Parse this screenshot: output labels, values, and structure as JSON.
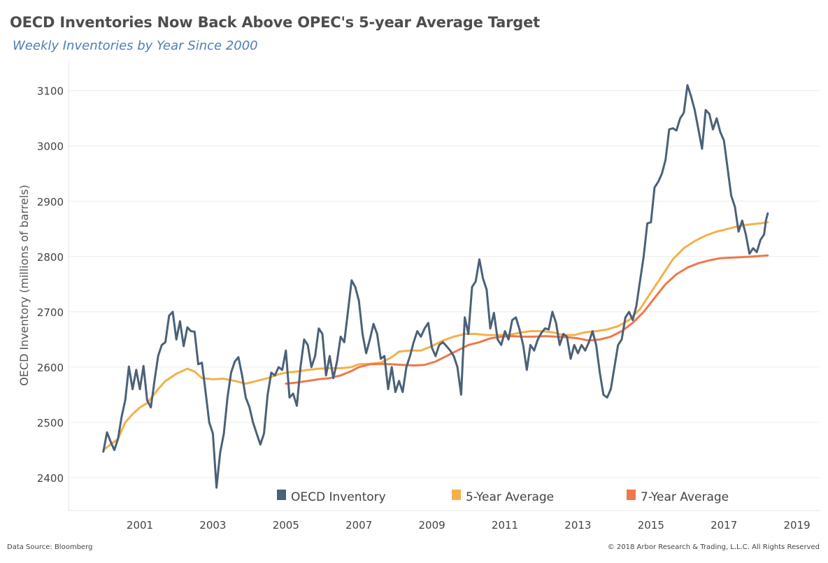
{
  "title": "OECD Inventories Now Back Above OPEC's 5-year Average Target",
  "subtitle": "Weekly Inventories by Year Since 2000",
  "footer": {
    "source": "Data Source: Bloomberg",
    "copyright": "© 2018 Arbor Research & Trading, L.L.C. All Rights Reserved"
  },
  "chart_data": {
    "type": "line",
    "title": "OECD Inventories Now Back Above OPEC's 5-year Average Target",
    "subtitle": "Weekly Inventories by Year Since 2000",
    "xlabel": "",
    "ylabel": "OECD Inventory (millions of barrels)",
    "xlim": [
      2000.0,
      2019.4
    ],
    "ylim": [
      2370,
      3115
    ],
    "x_ticks": [
      "2001",
      "2003",
      "2005",
      "2007",
      "2009",
      "2011",
      "2013",
      "2015",
      "2017",
      "2019"
    ],
    "y_ticks": [
      "2400",
      "2500",
      "2600",
      "2700",
      "2800",
      "2900",
      "3000",
      "3100"
    ],
    "grid": "horizontal",
    "legend": "bottom",
    "series": [
      {
        "name": "OECD Inventory",
        "color": "#4a6178",
        "points": [
          [
            2000.0,
            2447
          ],
          [
            2000.1,
            2482
          ],
          [
            2000.2,
            2465
          ],
          [
            2000.3,
            2450
          ],
          [
            2000.4,
            2470
          ],
          [
            2000.5,
            2510
          ],
          [
            2000.6,
            2540
          ],
          [
            2000.7,
            2601
          ],
          [
            2000.8,
            2560
          ],
          [
            2000.9,
            2595
          ],
          [
            2001.0,
            2560
          ],
          [
            2001.1,
            2602
          ],
          [
            2001.2,
            2540
          ],
          [
            2001.3,
            2527
          ],
          [
            2001.4,
            2575
          ],
          [
            2001.5,
            2620
          ],
          [
            2001.6,
            2640
          ],
          [
            2001.7,
            2645
          ],
          [
            2001.8,
            2693
          ],
          [
            2001.9,
            2700
          ],
          [
            2002.0,
            2650
          ],
          [
            2002.1,
            2683
          ],
          [
            2002.2,
            2638
          ],
          [
            2002.3,
            2672
          ],
          [
            2002.4,
            2665
          ],
          [
            2002.5,
            2664
          ],
          [
            2002.6,
            2605
          ],
          [
            2002.7,
            2608
          ],
          [
            2002.8,
            2555
          ],
          [
            2002.9,
            2500
          ],
          [
            2003.0,
            2480
          ],
          [
            2003.1,
            2382
          ],
          [
            2003.2,
            2445
          ],
          [
            2003.3,
            2480
          ],
          [
            2003.4,
            2545
          ],
          [
            2003.5,
            2590
          ],
          [
            2003.6,
            2610
          ],
          [
            2003.7,
            2618
          ],
          [
            2003.8,
            2585
          ],
          [
            2003.9,
            2545
          ],
          [
            2004.0,
            2528
          ],
          [
            2004.1,
            2500
          ],
          [
            2004.2,
            2480
          ],
          [
            2004.3,
            2460
          ],
          [
            2004.4,
            2480
          ],
          [
            2004.5,
            2550
          ],
          [
            2004.6,
            2590
          ],
          [
            2004.7,
            2585
          ],
          [
            2004.8,
            2600
          ],
          [
            2004.9,
            2595
          ],
          [
            2005.0,
            2630
          ],
          [
            2005.1,
            2545
          ],
          [
            2005.2,
            2552
          ],
          [
            2005.3,
            2530
          ],
          [
            2005.4,
            2600
          ],
          [
            2005.5,
            2650
          ],
          [
            2005.6,
            2640
          ],
          [
            2005.7,
            2600
          ],
          [
            2005.8,
            2620
          ],
          [
            2005.9,
            2670
          ],
          [
            2006.0,
            2660
          ],
          [
            2006.1,
            2585
          ],
          [
            2006.2,
            2620
          ],
          [
            2006.3,
            2580
          ],
          [
            2006.4,
            2610
          ],
          [
            2006.5,
            2655
          ],
          [
            2006.6,
            2645
          ],
          [
            2006.7,
            2700
          ],
          [
            2006.8,
            2757
          ],
          [
            2006.9,
            2745
          ],
          [
            2007.0,
            2720
          ],
          [
            2007.1,
            2660
          ],
          [
            2007.2,
            2625
          ],
          [
            2007.3,
            2650
          ],
          [
            2007.4,
            2678
          ],
          [
            2007.5,
            2660
          ],
          [
            2007.6,
            2615
          ],
          [
            2007.7,
            2620
          ],
          [
            2007.8,
            2560
          ],
          [
            2007.9,
            2600
          ],
          [
            2008.0,
            2555
          ],
          [
            2008.1,
            2575
          ],
          [
            2008.2,
            2555
          ],
          [
            2008.3,
            2600
          ],
          [
            2008.4,
            2620
          ],
          [
            2008.5,
            2645
          ],
          [
            2008.6,
            2665
          ],
          [
            2008.7,
            2655
          ],
          [
            2008.8,
            2670
          ],
          [
            2008.9,
            2680
          ],
          [
            2009.0,
            2635
          ],
          [
            2009.1,
            2620
          ],
          [
            2009.2,
            2640
          ],
          [
            2009.3,
            2645
          ],
          [
            2009.4,
            2638
          ],
          [
            2009.5,
            2630
          ],
          [
            2009.6,
            2620
          ],
          [
            2009.7,
            2600
          ],
          [
            2009.8,
            2550
          ],
          [
            2009.9,
            2690
          ],
          [
            2010.0,
            2660
          ],
          [
            2010.1,
            2745
          ],
          [
            2010.2,
            2755
          ],
          [
            2010.3,
            2795
          ],
          [
            2010.4,
            2760
          ],
          [
            2010.5,
            2740
          ],
          [
            2010.6,
            2670
          ],
          [
            2010.7,
            2698
          ],
          [
            2010.8,
            2650
          ],
          [
            2010.9,
            2640
          ],
          [
            2011.0,
            2665
          ],
          [
            2011.1,
            2650
          ],
          [
            2011.2,
            2685
          ],
          [
            2011.3,
            2690
          ],
          [
            2011.4,
            2668
          ],
          [
            2011.5,
            2640
          ],
          [
            2011.6,
            2595
          ],
          [
            2011.7,
            2640
          ],
          [
            2011.8,
            2630
          ],
          [
            2011.9,
            2650
          ],
          [
            2012.0,
            2662
          ],
          [
            2012.1,
            2670
          ],
          [
            2012.2,
            2668
          ],
          [
            2012.3,
            2700
          ],
          [
            2012.4,
            2680
          ],
          [
            2012.5,
            2640
          ],
          [
            2012.6,
            2660
          ],
          [
            2012.7,
            2655
          ],
          [
            2012.8,
            2615
          ],
          [
            2012.9,
            2640
          ],
          [
            2013.0,
            2625
          ],
          [
            2013.1,
            2640
          ],
          [
            2013.2,
            2630
          ],
          [
            2013.3,
            2645
          ],
          [
            2013.4,
            2665
          ],
          [
            2013.5,
            2640
          ],
          [
            2013.6,
            2590
          ],
          [
            2013.7,
            2550
          ],
          [
            2013.8,
            2545
          ],
          [
            2013.9,
            2560
          ],
          [
            2014.0,
            2600
          ],
          [
            2014.1,
            2640
          ],
          [
            2014.2,
            2650
          ],
          [
            2014.3,
            2690
          ],
          [
            2014.4,
            2700
          ],
          [
            2014.5,
            2685
          ],
          [
            2014.6,
            2710
          ],
          [
            2014.7,
            2755
          ],
          [
            2014.8,
            2800
          ],
          [
            2014.9,
            2860
          ],
          [
            2015.0,
            2862
          ],
          [
            2015.1,
            2925
          ],
          [
            2015.2,
            2935
          ],
          [
            2015.3,
            2950
          ],
          [
            2015.4,
            2975
          ],
          [
            2015.5,
            3030
          ],
          [
            2015.6,
            3032
          ],
          [
            2015.7,
            3028
          ],
          [
            2015.8,
            3050
          ],
          [
            2015.9,
            3060
          ],
          [
            2016.0,
            3110
          ],
          [
            2016.1,
            3090
          ],
          [
            2016.2,
            3065
          ],
          [
            2016.3,
            3030
          ],
          [
            2016.4,
            2995
          ],
          [
            2016.5,
            3065
          ],
          [
            2016.6,
            3058
          ],
          [
            2016.7,
            3030
          ],
          [
            2016.8,
            3050
          ],
          [
            2016.9,
            3025
          ],
          [
            2017.0,
            3010
          ],
          [
            2017.1,
            2960
          ],
          [
            2017.2,
            2910
          ],
          [
            2017.3,
            2890
          ],
          [
            2017.4,
            2845
          ],
          [
            2017.5,
            2865
          ],
          [
            2017.6,
            2840
          ],
          [
            2017.7,
            2805
          ],
          [
            2017.8,
            2815
          ],
          [
            2017.9,
            2808
          ],
          [
            2018.0,
            2830
          ],
          [
            2018.1,
            2840
          ],
          [
            2018.15,
            2865
          ],
          [
            2018.2,
            2878
          ]
        ]
      },
      {
        "name": "5-Year Average",
        "color": "#f5b04a",
        "points": [
          [
            2000.0,
            2450
          ],
          [
            2000.2,
            2460
          ],
          [
            2000.4,
            2470
          ],
          [
            2000.6,
            2500
          ],
          [
            2000.8,
            2515
          ],
          [
            2001.0,
            2527
          ],
          [
            2001.2,
            2535
          ],
          [
            2001.5,
            2560
          ],
          [
            2001.7,
            2575
          ],
          [
            2002.0,
            2588
          ],
          [
            2002.3,
            2597
          ],
          [
            2002.5,
            2592
          ],
          [
            2002.7,
            2580
          ],
          [
            2003.0,
            2578
          ],
          [
            2003.3,
            2579
          ],
          [
            2003.6,
            2575
          ],
          [
            2003.9,
            2570
          ],
          [
            2004.2,
            2575
          ],
          [
            2004.5,
            2580
          ],
          [
            2004.8,
            2587
          ],
          [
            2005.0,
            2590
          ],
          [
            2005.3,
            2592
          ],
          [
            2005.6,
            2595
          ],
          [
            2005.9,
            2597
          ],
          [
            2006.2,
            2598
          ],
          [
            2006.5,
            2598
          ],
          [
            2006.8,
            2600
          ],
          [
            2007.0,
            2605
          ],
          [
            2007.3,
            2606
          ],
          [
            2007.6,
            2608
          ],
          [
            2007.9,
            2618
          ],
          [
            2008.1,
            2628
          ],
          [
            2008.4,
            2630
          ],
          [
            2008.7,
            2630
          ],
          [
            2009.0,
            2638
          ],
          [
            2009.3,
            2648
          ],
          [
            2009.6,
            2655
          ],
          [
            2009.9,
            2660
          ],
          [
            2010.2,
            2660
          ],
          [
            2010.5,
            2658
          ],
          [
            2010.8,
            2658
          ],
          [
            2011.1,
            2658
          ],
          [
            2011.4,
            2662
          ],
          [
            2011.7,
            2665
          ],
          [
            2012.0,
            2665
          ],
          [
            2012.3,
            2663
          ],
          [
            2012.6,
            2658
          ],
          [
            2012.9,
            2658
          ],
          [
            2013.2,
            2663
          ],
          [
            2013.5,
            2665
          ],
          [
            2013.8,
            2668
          ],
          [
            2014.1,
            2674
          ],
          [
            2014.4,
            2685
          ],
          [
            2014.7,
            2705
          ],
          [
            2015.0,
            2735
          ],
          [
            2015.3,
            2765
          ],
          [
            2015.6,
            2795
          ],
          [
            2015.9,
            2815
          ],
          [
            2016.2,
            2828
          ],
          [
            2016.5,
            2838
          ],
          [
            2016.8,
            2845
          ],
          [
            2017.1,
            2850
          ],
          [
            2017.4,
            2855
          ],
          [
            2017.7,
            2858
          ],
          [
            2018.0,
            2860
          ],
          [
            2018.2,
            2862
          ]
        ]
      },
      {
        "name": "7-Year Average",
        "color": "#f0774a",
        "points": [
          [
            2005.0,
            2570
          ],
          [
            2005.3,
            2572
          ],
          [
            2005.6,
            2575
          ],
          [
            2005.9,
            2578
          ],
          [
            2006.2,
            2580
          ],
          [
            2006.5,
            2585
          ],
          [
            2006.8,
            2593
          ],
          [
            2007.0,
            2600
          ],
          [
            2007.3,
            2605
          ],
          [
            2007.6,
            2606
          ],
          [
            2007.9,
            2605
          ],
          [
            2008.2,
            2604
          ],
          [
            2008.5,
            2603
          ],
          [
            2008.8,
            2604
          ],
          [
            2009.1,
            2610
          ],
          [
            2009.4,
            2620
          ],
          [
            2009.7,
            2630
          ],
          [
            2010.0,
            2640
          ],
          [
            2010.3,
            2645
          ],
          [
            2010.6,
            2652
          ],
          [
            2010.9,
            2655
          ],
          [
            2011.2,
            2656
          ],
          [
            2011.5,
            2655
          ],
          [
            2011.8,
            2655
          ],
          [
            2012.1,
            2656
          ],
          [
            2012.4,
            2655
          ],
          [
            2012.7,
            2654
          ],
          [
            2013.0,
            2652
          ],
          [
            2013.3,
            2648
          ],
          [
            2013.6,
            2650
          ],
          [
            2013.9,
            2655
          ],
          [
            2014.2,
            2665
          ],
          [
            2014.5,
            2680
          ],
          [
            2014.8,
            2700
          ],
          [
            2015.1,
            2725
          ],
          [
            2015.4,
            2750
          ],
          [
            2015.7,
            2768
          ],
          [
            2016.0,
            2780
          ],
          [
            2016.3,
            2788
          ],
          [
            2016.6,
            2793
          ],
          [
            2016.9,
            2797
          ],
          [
            2017.2,
            2798
          ],
          [
            2017.5,
            2799
          ],
          [
            2017.8,
            2800
          ],
          [
            2018.0,
            2801
          ],
          [
            2018.2,
            2802
          ]
        ]
      }
    ]
  }
}
